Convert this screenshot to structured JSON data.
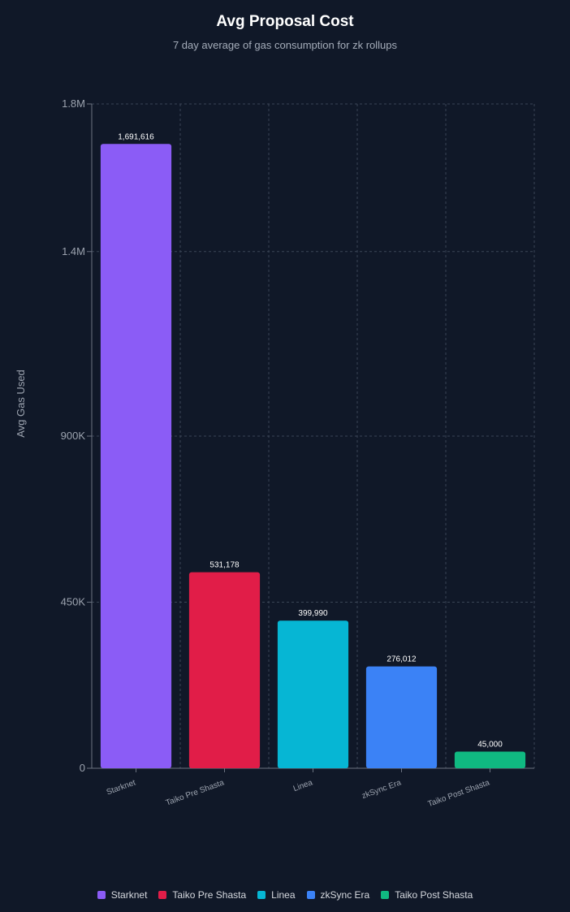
{
  "chart_data": {
    "type": "bar",
    "title": "Avg Proposal Cost",
    "subtitle": "7 day average of gas consumption for zk rollups",
    "xlabel": "",
    "ylabel": "Avg Gas Used",
    "categories": [
      "Starknet",
      "Taiko Pre Shasta",
      "Linea",
      "zkSync Era",
      "Taiko Post Shasta"
    ],
    "values": [
      1691616,
      531178,
      399990,
      276012,
      45000
    ],
    "value_labels": [
      "1,691,616",
      "531,178",
      "399,990",
      "276,012",
      "45,000"
    ],
    "colors": [
      "#8b5cf6",
      "#e11d48",
      "#06b6d4",
      "#3b82f6",
      "#10b981"
    ],
    "ylim": [
      0,
      1800000
    ],
    "yticks": [
      0,
      450000,
      900000,
      1400000,
      1800000
    ],
    "ytick_labels": [
      "0",
      "450K",
      "900K",
      "1.4M",
      "1.8M"
    ],
    "grid": true,
    "legend_position": "bottom-center"
  },
  "colors": {
    "background": "#101828",
    "grid": "#3a4556",
    "axis": "#6b7280",
    "tick_text": "#9ca3af"
  }
}
